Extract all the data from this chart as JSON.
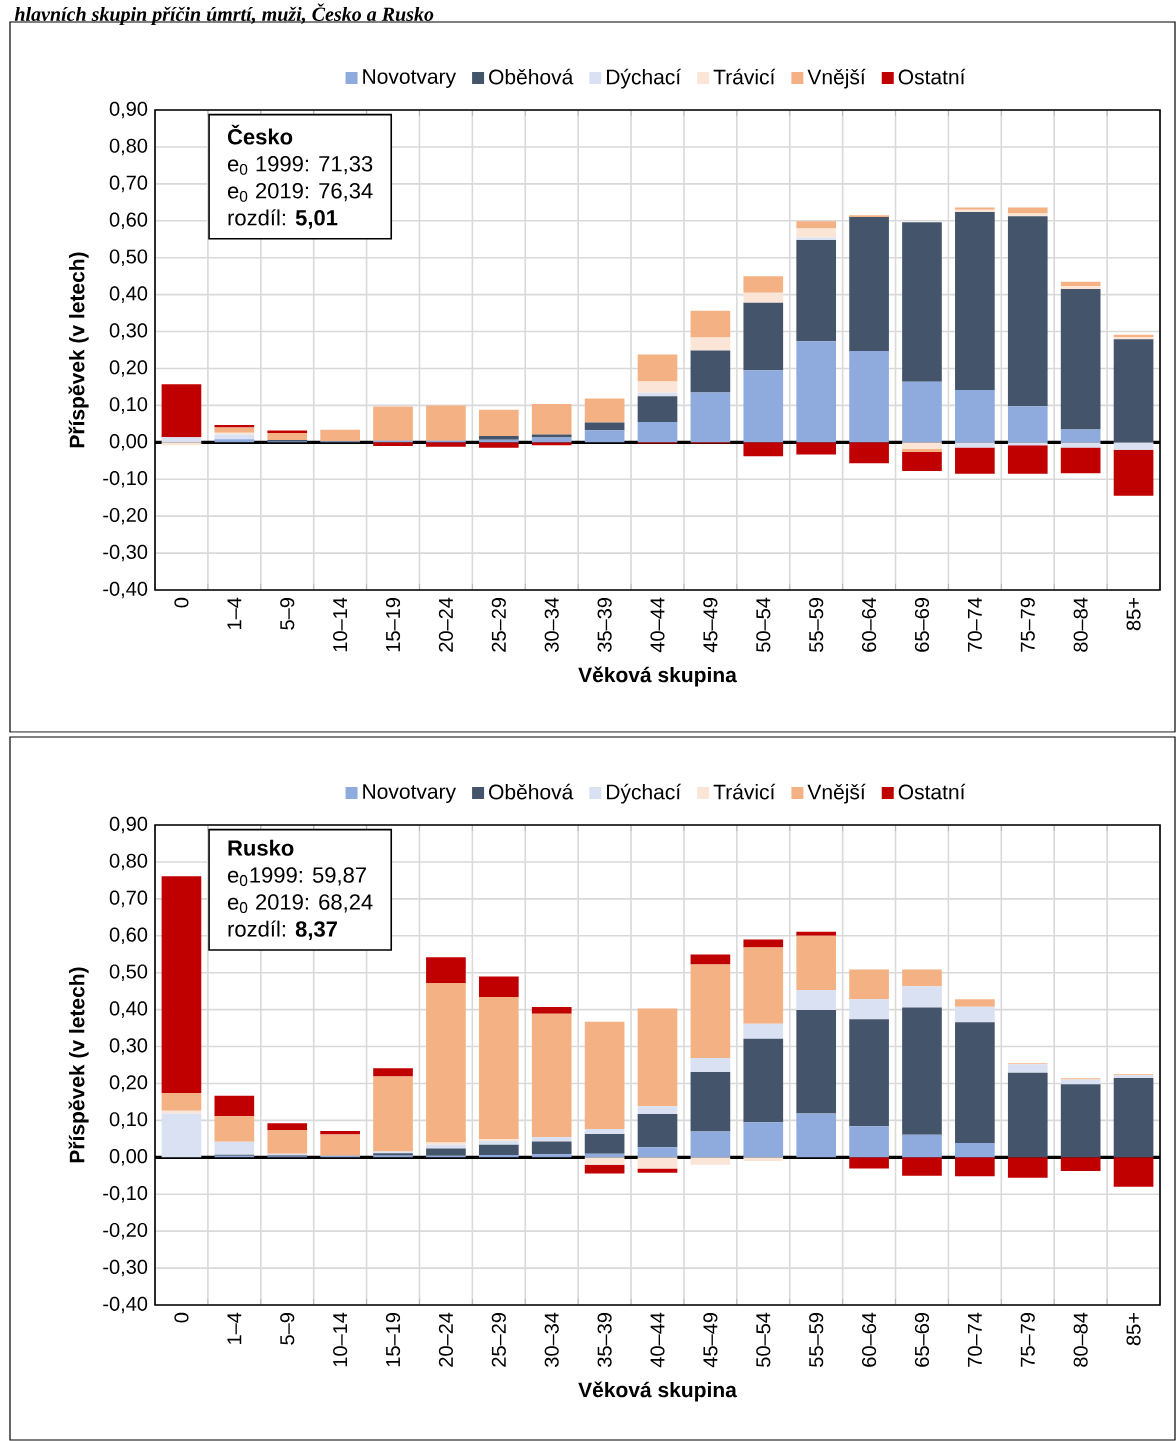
{
  "chart_data": [
    {
      "type": "bar",
      "stacked": true,
      "title": "hlavních skupin příčin úmrtí, muži, Česko a Rusko",
      "xlabel": "Věková skupina",
      "ylabel": "Příspěvek (v letech)",
      "legend": "top",
      "grid": true,
      "categories": [
        "0",
        "1–4",
        "5–9",
        "10–14",
        "15–19",
        "20–24",
        "25–29",
        "30–34",
        "35–39",
        "40–44",
        "45–49",
        "50–54",
        "55–59",
        "60–64",
        "65–69",
        "70–74",
        "75–79",
        "80–84",
        "85+"
      ],
      "ylim": [
        -0.4,
        0.9
      ],
      "yticks": [
        {
          "value": -0.4,
          "label": "-0,40"
        },
        {
          "value": -0.3,
          "label": "-0,30"
        },
        {
          "value": -0.2,
          "label": "-0,20"
        },
        {
          "value": -0.1,
          "label": "-0,10"
        },
        {
          "value": 0,
          "label": "0,00"
        },
        {
          "value": 0.1,
          "label": "0,10"
        },
        {
          "value": 0.2,
          "label": "0,20"
        },
        {
          "value": 0.3,
          "label": "0,30"
        },
        {
          "value": 0.4,
          "label": "0,40"
        },
        {
          "value": 0.5,
          "label": "0,50"
        },
        {
          "value": 0.6,
          "label": "0,60"
        },
        {
          "value": 0.7,
          "label": "0,70"
        },
        {
          "value": 0.8,
          "label": "0,80"
        },
        {
          "value": 0.9,
          "label": "0,90"
        }
      ],
      "annotations": [
        "Česko",
        "e$_{0}$ 1999: 71,33",
        "e$_{0}$ 2019: 76,34",
        "rozdíl: **5,01**"
      ],
      "series": [
        {
          "name": "Novotvary",
          "color": "#8faadc",
          "values": [
            0,
            0.008,
            0.003,
            0.003,
            0.004,
            0.004,
            0.007,
            0.013,
            0.033,
            0.055,
            0.135,
            0.195,
            0.274,
            0.247,
            0.164,
            0.142,
            0.098,
            0.035,
            0
          ]
        },
        {
          "name": "Oběhová",
          "color": "#44546a",
          "values": [
            0,
            0,
            0.003,
            0,
            0,
            0,
            0.01,
            0.008,
            0.021,
            0.07,
            0.114,
            0.183,
            0.274,
            0.363,
            0.432,
            0.482,
            0.514,
            0.38,
            0.279
          ]
        },
        {
          "name": "Dýchací",
          "color": "#d9e1f2",
          "values": [
            0.014,
            0.013,
            0,
            0,
            0,
            0,
            0,
            0,
            0,
            0.009,
            0,
            0,
            0.007,
            0,
            0,
            -0.014,
            -0.008,
            -0.014,
            -0.02
          ]
        },
        {
          "name": "Trávicí",
          "color": "#fbe5d6",
          "values": [
            -0.008,
            0.005,
            null,
            0,
            0,
            0,
            0,
            0,
            0,
            0.031,
            0.035,
            0.027,
            0.024,
            0,
            -0.018,
            0.006,
            0.008,
            0.008,
            0.006
          ]
        },
        {
          "name": "Vnější",
          "color": "#f4b183",
          "values": [
            0,
            0.014,
            0.019,
            0.031,
            0.093,
            0.096,
            0.071,
            0.083,
            0.065,
            0.073,
            0.072,
            0.045,
            0.02,
            0.005,
            -0.008,
            0.006,
            0.016,
            0.012,
            0.006
          ]
        },
        {
          "name": "Ostatní",
          "color": "#c00000",
          "values": [
            0.143,
            0.007,
            0.007,
            0,
            -0.01,
            -0.012,
            -0.015,
            -0.008,
            0,
            -0.003,
            -0.003,
            -0.038,
            -0.033,
            -0.057,
            -0.052,
            -0.071,
            -0.077,
            -0.07,
            -0.125
          ]
        }
      ]
    },
    {
      "type": "bar",
      "stacked": true,
      "xlabel": "Věková skupina",
      "ylabel": "Příspěvek (v letech)",
      "legend": "top",
      "grid": true,
      "categories": [
        "0",
        "1–4",
        "5–9",
        "10–14",
        "15–19",
        "20–24",
        "25–29",
        "30–34",
        "35–39",
        "40–44",
        "45–49",
        "50–54",
        "55–59",
        "60–64",
        "65–69",
        "70–74",
        "75–79",
        "80–84",
        "85+"
      ],
      "ylim": [
        -0.4,
        0.9
      ],
      "yticks": [
        {
          "value": -0.4,
          "label": "-0,40"
        },
        {
          "value": -0.3,
          "label": "-0,30"
        },
        {
          "value": -0.2,
          "label": "-0,20"
        },
        {
          "value": -0.1,
          "label": "-0,10"
        },
        {
          "value": 0,
          "label": "0,00"
        },
        {
          "value": 0.1,
          "label": "0,10"
        },
        {
          "value": 0.2,
          "label": "0,20"
        },
        {
          "value": 0.3,
          "label": "0,30"
        },
        {
          "value": 0.4,
          "label": "0,40"
        },
        {
          "value": 0.5,
          "label": "0,50"
        },
        {
          "value": 0.6,
          "label": "0,60"
        },
        {
          "value": 0.7,
          "label": "0,70"
        },
        {
          "value": 0.8,
          "label": "0,80"
        },
        {
          "value": 0.9,
          "label": "0,90"
        }
      ],
      "annotations": [
        "Rusko",
        "e$_{0}$1999: 59,87",
        "e$_{0}$ 2019: 68,24",
        "rozdíl: **8,37**"
      ],
      "series": [
        {
          "name": "Novotvary",
          "color": "#8faadc",
          "values": [
            0,
            0.004,
            0.003,
            0.004,
            0.005,
            0.004,
            0.006,
            0.008,
            0.01,
            0.027,
            0.07,
            0.095,
            0.119,
            0.084,
            0.061,
            0.039,
            0,
            0,
            0
          ]
        },
        {
          "name": "Oběhová",
          "color": "#44546a",
          "values": [
            0,
            0.003,
            0.002,
            0,
            0.006,
            0.02,
            0.028,
            0.035,
            0.053,
            0.09,
            0.161,
            0.226,
            0.28,
            0.29,
            0.345,
            0.327,
            0.229,
            0.198,
            0.215
          ]
        },
        {
          "name": "Dýchací",
          "color": "#d9e1f2",
          "values": [
            0.119,
            0.035,
            0.005,
            0,
            0.005,
            0.01,
            0.01,
            0.012,
            0.014,
            0.021,
            0.038,
            0.041,
            0.054,
            0.054,
            0.057,
            0.042,
            0.023,
            0.013,
            0.007
          ]
        },
        {
          "name": "Trávicí",
          "color": "#fbe5d6",
          "values": [
            0.007,
            0,
            0,
            0,
            0,
            0.006,
            0.005,
            0,
            -0.02,
            -0.03,
            -0.02,
            -0.01,
            0,
            0,
            0,
            0,
            0,
            0,
            0
          ]
        },
        {
          "name": "Vnější",
          "color": "#f4b183",
          "values": [
            0.048,
            0.069,
            0.064,
            0.058,
            0.203,
            0.432,
            0.385,
            0.334,
            0.29,
            0.265,
            0.253,
            0.206,
            0.147,
            0.081,
            0.046,
            0.02,
            0.003,
            0.003,
            0.003
          ]
        },
        {
          "name": "Ostatní",
          "color": "#c00000",
          "values": [
            0.587,
            0.056,
            0.018,
            0.009,
            0.022,
            0.07,
            0.056,
            0.018,
            -0.024,
            -0.012,
            0.027,
            0.022,
            0.011,
            -0.03,
            -0.05,
            -0.051,
            -0.055,
            -0.037,
            -0.08
          ]
        }
      ]
    }
  ]
}
